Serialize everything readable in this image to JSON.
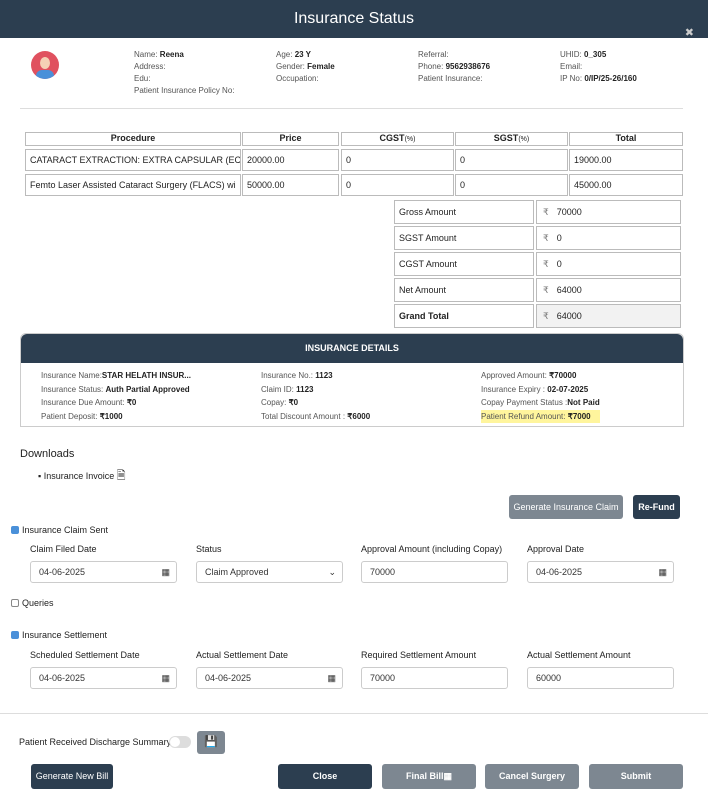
{
  "title": "Insurance Status",
  "patient": {
    "name_label": "Name:",
    "name": "Reena",
    "address_label": "Address:",
    "edu_label": "Edu:",
    "policy_label": "Patient Insurance Policy No:",
    "age_label": "Age:",
    "age": "23 Y",
    "gender_label": "Gender:",
    "gender": "Female",
    "occupation_label": "Occupation:",
    "referral_label": "Referral:",
    "phone_label": "Phone:",
    "phone": "9562938676",
    "insurance_label": "Patient Insurance:",
    "uhid_label": "UHID:",
    "uhid": "0_305",
    "email_label": "Email:",
    "ip_label": "IP No:",
    "ip": "0/IP/25-26/160"
  },
  "procedures": {
    "headers": {
      "procedure": "Procedure",
      "price": "Price",
      "cgst": "CGST",
      "cgst_unit": "(%)",
      "sgst": "SGST",
      "sgst_unit": "(%)",
      "total": "Total"
    },
    "rows": [
      {
        "procedure": "CATARACT EXTRACTION: EXTRA CAPSULAR (EC",
        "price": "20000.00",
        "cgst": "0",
        "sgst": "0",
        "total": "19000.00"
      },
      {
        "procedure": "Femto Laser Assisted Cataract Surgery (FLACS)  wi",
        "price": "50000.00",
        "cgst": "0",
        "sgst": "0",
        "total": "45000.00"
      }
    ]
  },
  "summary": {
    "currency": "₹",
    "rows": [
      {
        "label": "Gross Amount",
        "value": "70000"
      },
      {
        "label": "SGST Amount",
        "value": "0"
      },
      {
        "label": "CGST Amount",
        "value": "0"
      },
      {
        "label": "Net Amount",
        "value": "64000"
      },
      {
        "label": "Grand Total",
        "value": "64000"
      }
    ]
  },
  "insurance": {
    "title": "INSURANCE DETAILS",
    "name_label": "Insurance Name:",
    "name": "STAR HELATH INSUR...",
    "status_label": "Insurance Status:",
    "status": "Auth Partial Approved",
    "due_label": "Insurance Due Amount:",
    "due": "₹0",
    "deposit_label": "Patient Deposit:",
    "deposit": "₹1000",
    "no_label": "Insurance No.:",
    "no": "1123",
    "claim_label": "Claim ID:",
    "claim": "1123",
    "copay_label": "Copay:",
    "copay": "₹0",
    "discount_label": "Total Discount Amount :",
    "discount": "₹6000",
    "approved_label": "Approved Amount:",
    "approved": "₹70000",
    "expiry_label": "Insurance Expiry :",
    "expiry": "02-07-2025",
    "copay_status_label": "Copay Payment Status :",
    "copay_status": "Not Paid",
    "refund_label": "Patient Refund Amount:",
    "refund": "₹7000"
  },
  "downloads": {
    "title": "Downloads",
    "item": "Insurance Invoice"
  },
  "buttons": {
    "generate_claim": "Generate Insurance Claim",
    "refund": "Re-Fund",
    "generate_bill": "Generate New Bill",
    "close": "Close",
    "final_bill": "Final Bill",
    "cancel_surgery": "Cancel Surgery",
    "submit": "Submit"
  },
  "claim": {
    "label": "Insurance Claim Sent",
    "checked": true,
    "filed_label": "Claim Filed Date",
    "filed": "04-06-2025",
    "status_label": "Status",
    "status": "Claim Approved",
    "approval_amount_label": "Approval Amount (including Copay)",
    "approval_amount": "70000",
    "approval_date_label": "Approval Date",
    "approval_date": "04-06-2025"
  },
  "queries": {
    "label": "Queries",
    "checked": false
  },
  "settlement": {
    "label": "Insurance Settlement",
    "checked": true,
    "scheduled_label": "Scheduled Settlement Date",
    "scheduled": "04-06-2025",
    "actual_label": "Actual Settlement Date",
    "actual": "04-06-2025",
    "required_label": "Required Settlement Amount",
    "required": "70000",
    "actual_amount_label": "Actual Settlement Amount",
    "actual_amount": "60000"
  },
  "discharge": {
    "label": "Patient Received Discharge Summary",
    "toggle_on": false
  }
}
